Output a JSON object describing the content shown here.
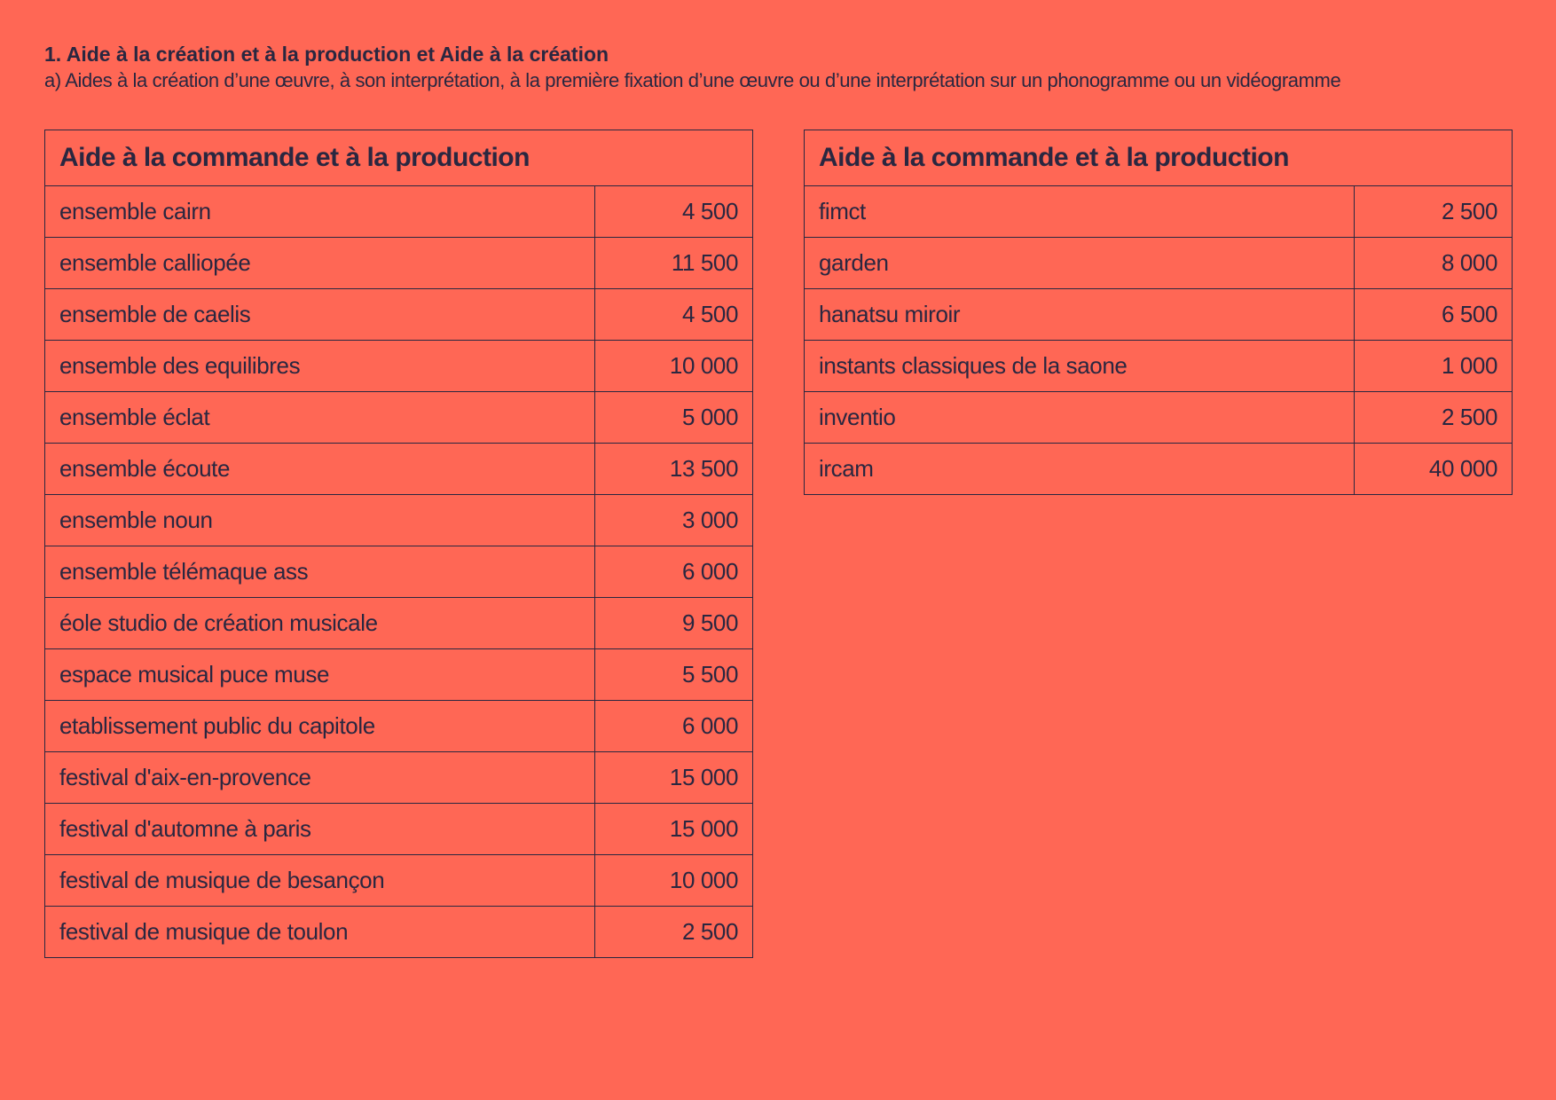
{
  "colors": {
    "background": "#ff6755",
    "text": "#2a2740"
  },
  "heading": {
    "title": "1. Aide à la création et à la production et Aide à la création",
    "subtitle": "a) Aides à la création d’une œuvre, à son interprétation, à la première fixation d’une œuvre ou d’une interprétation sur un phonogramme ou un vidéogramme"
  },
  "tables": [
    {
      "header": "Aide à la commande et à la production",
      "rows": [
        {
          "name": "ensemble cairn",
          "amount": "4 500"
        },
        {
          "name": "ensemble calliopée",
          "amount": "11 500"
        },
        {
          "name": "ensemble de caelis",
          "amount": "4 500"
        },
        {
          "name": "ensemble des equilibres",
          "amount": "10 000"
        },
        {
          "name": "ensemble éclat",
          "amount": "5 000"
        },
        {
          "name": "ensemble écoute",
          "amount": "13 500"
        },
        {
          "name": "ensemble noun",
          "amount": "3 000"
        },
        {
          "name": "ensemble télémaque ass",
          "amount": "6 000"
        },
        {
          "name": "éole studio de création musicale",
          "amount": "9 500"
        },
        {
          "name": "espace musical puce muse",
          "amount": "5 500"
        },
        {
          "name": "etablissement public du capitole",
          "amount": "6 000"
        },
        {
          "name": "festival d'aix-en-provence",
          "amount": "15 000"
        },
        {
          "name": "festival d'automne à paris",
          "amount": "15 000"
        },
        {
          "name": "festival de musique de besançon",
          "amount": "10 000"
        },
        {
          "name": "festival de musique de toulon",
          "amount": "2 500"
        }
      ]
    },
    {
      "header": "Aide à la commande et à la production",
      "rows": [
        {
          "name": "fimct",
          "amount": "2 500"
        },
        {
          "name": "garden",
          "amount": "8 000"
        },
        {
          "name": "hanatsu miroir",
          "amount": "6 500"
        },
        {
          "name": "instants classiques de la saone",
          "amount": "1 000"
        },
        {
          "name": "inventio",
          "amount": "2 500"
        },
        {
          "name": "ircam",
          "amount": "40 000"
        }
      ]
    }
  ]
}
